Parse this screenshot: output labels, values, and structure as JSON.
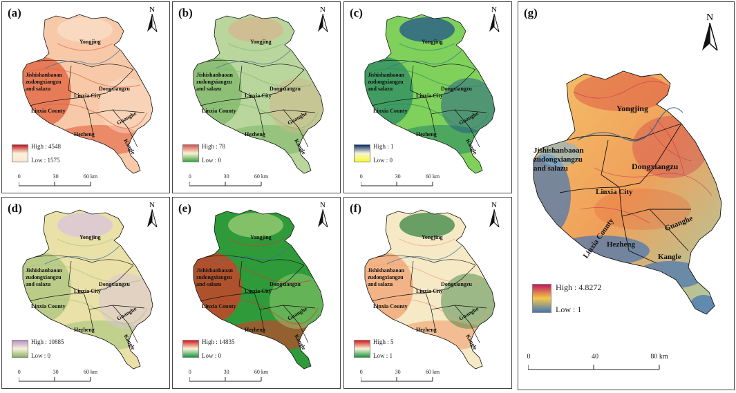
{
  "panels": [
    {
      "id": "a",
      "label": "(a)",
      "legend_high": "High : 4548",
      "legend_low": "Low : 1575",
      "legend_colors": [
        "#c8141e",
        "#fbe7d6"
      ],
      "fill_colors": [
        "#f7c9a8",
        "#e2603d",
        "#fbe0cc"
      ]
    },
    {
      "id": "b",
      "label": "(b)",
      "legend_high": "High : 78",
      "legend_low": "Low : 0",
      "legend_colors": [
        "#d9534a",
        "#3fa33d"
      ],
      "fill_colors": [
        "#b9d69c",
        "#7fb86a",
        "#d8b48e"
      ]
    },
    {
      "id": "c",
      "label": "(c)",
      "legend_high": "High : 1",
      "legend_low": "Low : 0",
      "legend_colors": [
        "#08306b",
        "#f7fc2e"
      ],
      "fill_colors": [
        "#7fd15b",
        "#2b8a63",
        "#1b4d8f"
      ]
    },
    {
      "id": "d",
      "label": "(d)",
      "legend_high": "High : 10885",
      "legend_low": "Low : 0",
      "legend_colors": [
        "#b98fc9",
        "#8db06a"
      ],
      "fill_colors": [
        "#e9e1a8",
        "#a9c47d",
        "#d8c2e0"
      ]
    },
    {
      "id": "e",
      "label": "(e)",
      "legend_high": "High : 14835",
      "legend_low": "Low : 0",
      "legend_colors": [
        "#d7191c",
        "#1a9641"
      ],
      "fill_colors": [
        "#2f9a3a",
        "#d93a2a",
        "#a7d27c"
      ]
    },
    {
      "id": "f",
      "label": "(f)",
      "legend_high": "High : 5",
      "legend_low": "Low : 1",
      "legend_colors": [
        "#d7191c",
        "#1a9641"
      ],
      "fill_colors": [
        "#f6e9c6",
        "#f0a070",
        "#2e7d3a"
      ]
    }
  ],
  "small_places": {
    "yongjing": "Yongjing",
    "jishishan": [
      "Jishishanbaoan",
      "zudongxiangzu",
      "and salazu"
    ],
    "linxia_city": "Linxia City",
    "dongxiangzu": "Dongxiangzu",
    "linxia_county": "Linxia County",
    "guanghe": "Guanghe",
    "hezheng": "Hezheng",
    "kangle": "Kangle"
  },
  "small_scale": [
    "0",
    "30",
    "60 km"
  ],
  "north_label": "N",
  "main": {
    "label": "(g)",
    "legend_high": "High : 4.8272",
    "legend_low": "Low : 1",
    "legend_colors": [
      "#c2185b",
      "#f2c94c",
      "#4575b4"
    ],
    "scale": [
      "0",
      "40",
      "80 km"
    ],
    "places": {
      "yongjing": "Yongjing",
      "jishishan": [
        "Jishishanbaoan",
        "zudongxiangzu",
        "and salazu"
      ],
      "dongxiangzu": "Dongxiangzu",
      "linxia_city": "Linxia City",
      "linxia_county": "Linxia County",
      "guanghe": "Guanghe",
      "hezheng": "Hezheng",
      "kangle": "Kangle"
    }
  }
}
